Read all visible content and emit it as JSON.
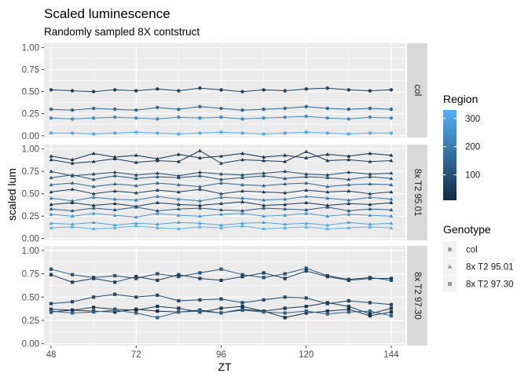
{
  "chart_data": {
    "type": "line",
    "title": "Scaled luminescence",
    "subtitle": "Randomly sampled 8X contstruct",
    "xlabel": "ZT",
    "ylabel": "scaled lum",
    "x_ticks": [
      48,
      72,
      96,
      120,
      144
    ],
    "y_ticks": [
      0.0,
      0.25,
      0.5,
      0.75,
      1.0
    ],
    "y_tick_labels": [
      "0.00",
      "0.25",
      "0.50",
      "0.75",
      "1.00"
    ],
    "x_range": [
      46,
      148
    ],
    "ylim": [
      -0.02,
      1.05
    ],
    "grid": true,
    "legend_position": "right",
    "panels": [
      {
        "label": "col",
        "genotype": "col",
        "series": [
          {
            "region": 60,
            "x": [
              48,
              54,
              60,
              66,
              72,
              78,
              84,
              90,
              96,
              102,
              108,
              114,
              120,
              126,
              132,
              138,
              144
            ],
            "values": [
              0.52,
              0.51,
              0.5,
              0.52,
              0.51,
              0.53,
              0.51,
              0.54,
              0.52,
              0.5,
              0.52,
              0.51,
              0.53,
              0.54,
              0.52,
              0.51,
              0.52
            ]
          },
          {
            "region": 150,
            "x": [
              48,
              54,
              60,
              66,
              72,
              78,
              84,
              90,
              96,
              102,
              108,
              114,
              120,
              126,
              132,
              138,
              144
            ],
            "values": [
              0.3,
              0.29,
              0.31,
              0.3,
              0.29,
              0.32,
              0.3,
              0.33,
              0.31,
              0.29,
              0.3,
              0.31,
              0.33,
              0.31,
              0.3,
              0.31,
              0.3
            ]
          },
          {
            "region": 240,
            "x": [
              48,
              54,
              60,
              66,
              72,
              78,
              84,
              90,
              96,
              102,
              108,
              114,
              120,
              126,
              132,
              138,
              144
            ],
            "values": [
              0.2,
              0.19,
              0.2,
              0.21,
              0.2,
              0.19,
              0.21,
              0.2,
              0.21,
              0.19,
              0.2,
              0.21,
              0.22,
              0.2,
              0.19,
              0.21,
              0.2
            ]
          },
          {
            "region": 320,
            "x": [
              48,
              54,
              60,
              66,
              72,
              78,
              84,
              90,
              96,
              102,
              108,
              114,
              120,
              126,
              132,
              138,
              144
            ],
            "values": [
              0.03,
              0.03,
              0.02,
              0.03,
              0.04,
              0.03,
              0.02,
              0.03,
              0.04,
              0.03,
              0.02,
              0.03,
              0.04,
              0.03,
              0.02,
              0.03,
              0.03
            ]
          }
        ]
      },
      {
        "label": "8x T2 95.01",
        "genotype": "8x T2 95.01",
        "series": [
          {
            "region": 20,
            "x": [
              48,
              54,
              60,
              66,
              72,
              78,
              84,
              90,
              96,
              102,
              108,
              114,
              120,
              126,
              132,
              138,
              144
            ],
            "values": [
              0.92,
              0.88,
              0.95,
              0.91,
              0.93,
              0.89,
              0.94,
              0.9,
              0.92,
              0.95,
              0.91,
              0.93,
              0.9,
              0.94,
              0.92,
              0.95,
              0.93
            ]
          },
          {
            "region": 40,
            "x": [
              48,
              54,
              60,
              66,
              72,
              78,
              84,
              90,
              96,
              102,
              108,
              114,
              120,
              126,
              132,
              138,
              144
            ],
            "values": [
              0.88,
              0.84,
              0.86,
              0.89,
              0.85,
              0.87,
              0.86,
              0.98,
              0.84,
              0.88,
              0.87,
              0.86,
              0.97,
              0.87,
              0.88,
              0.86,
              0.87
            ]
          },
          {
            "region": 80,
            "x": [
              48,
              54,
              60,
              66,
              72,
              78,
              84,
              90,
              96,
              102,
              108,
              114,
              120,
              126,
              132,
              138,
              144
            ],
            "values": [
              0.75,
              0.7,
              0.72,
              0.74,
              0.71,
              0.73,
              0.7,
              0.74,
              0.72,
              0.71,
              0.73,
              0.75,
              0.72,
              0.71,
              0.74,
              0.72,
              0.73
            ]
          },
          {
            "region": 110,
            "x": [
              48,
              54,
              60,
              66,
              72,
              78,
              84,
              90,
              96,
              102,
              108,
              114,
              120,
              126,
              132,
              138,
              144
            ],
            "values": [
              0.68,
              0.71,
              0.66,
              0.7,
              0.67,
              0.69,
              0.68,
              0.7,
              0.66,
              0.68,
              0.7,
              0.67,
              0.69,
              0.68,
              0.66,
              0.69,
              0.67
            ]
          },
          {
            "region": 150,
            "x": [
              48,
              54,
              60,
              66,
              72,
              78,
              84,
              90,
              96,
              102,
              108,
              114,
              120,
              126,
              132,
              138,
              144
            ],
            "values": [
              0.6,
              0.62,
              0.58,
              0.61,
              0.59,
              0.62,
              0.6,
              0.58,
              0.62,
              0.6,
              0.59,
              0.61,
              0.62,
              0.58,
              0.6,
              0.61,
              0.6
            ]
          },
          {
            "region": 60,
            "x": [
              48,
              54,
              60,
              66,
              72,
              78,
              84,
              90,
              96,
              102,
              108,
              114,
              120,
              126,
              132,
              138,
              144
            ],
            "values": [
              0.52,
              0.55,
              0.5,
              0.53,
              0.51,
              0.54,
              0.52,
              0.55,
              0.5,
              0.53,
              0.52,
              0.51,
              0.54,
              0.52,
              0.53,
              0.5,
              0.52
            ]
          },
          {
            "region": 200,
            "x": [
              48,
              54,
              60,
              66,
              72,
              78,
              84,
              90,
              96,
              102,
              108,
              114,
              120,
              126,
              132,
              138,
              144
            ],
            "values": [
              0.45,
              0.42,
              0.46,
              0.44,
              0.43,
              0.47,
              0.44,
              0.42,
              0.46,
              0.45,
              0.43,
              0.44,
              0.47,
              0.45,
              0.43,
              0.46,
              0.44
            ]
          },
          {
            "region": 30,
            "x": [
              48,
              54,
              60,
              66,
              72,
              78,
              84,
              90,
              96,
              102,
              108,
              114,
              120,
              126,
              132,
              138,
              144
            ],
            "values": [
              0.38,
              0.4,
              0.37,
              0.39,
              0.36,
              0.4,
              0.38,
              0.37,
              0.39,
              0.41,
              0.37,
              0.38,
              0.4,
              0.37,
              0.39,
              0.38,
              0.4
            ]
          },
          {
            "region": 120,
            "x": [
              48,
              54,
              60,
              66,
              72,
              78,
              84,
              90,
              96,
              102,
              108,
              114,
              120,
              126,
              132,
              138,
              144
            ],
            "values": [
              0.33,
              0.31,
              0.34,
              0.32,
              0.35,
              0.31,
              0.33,
              0.34,
              0.32,
              0.31,
              0.34,
              0.33,
              0.32,
              0.35,
              0.31,
              0.33,
              0.32
            ]
          },
          {
            "region": 260,
            "x": [
              48,
              54,
              60,
              66,
              72,
              78,
              84,
              90,
              96,
              102,
              108,
              114,
              120,
              126,
              132,
              138,
              144
            ],
            "values": [
              0.27,
              0.25,
              0.28,
              0.26,
              0.24,
              0.28,
              0.26,
              0.25,
              0.27,
              0.28,
              0.25,
              0.26,
              0.28,
              0.25,
              0.27,
              0.26,
              0.25
            ]
          },
          {
            "region": 300,
            "x": [
              48,
              54,
              60,
              66,
              72,
              78,
              84,
              90,
              96,
              102,
              108,
              114,
              120,
              126,
              132,
              138,
              144
            ],
            "values": [
              0.17,
              0.16,
              0.18,
              0.15,
              0.17,
              0.16,
              0.18,
              0.17,
              0.15,
              0.17,
              0.18,
              0.16,
              0.17,
              0.15,
              0.18,
              0.16,
              0.17
            ]
          },
          {
            "region": 330,
            "x": [
              48,
              54,
              60,
              66,
              72,
              78,
              84,
              90,
              96,
              102,
              108,
              114,
              120,
              126,
              132,
              138,
              144
            ],
            "values": [
              0.12,
              0.13,
              0.11,
              0.12,
              0.14,
              0.12,
              0.11,
              0.13,
              0.12,
              0.14,
              0.11,
              0.12,
              0.13,
              0.11,
              0.12,
              0.13,
              0.12
            ]
          }
        ]
      },
      {
        "label": "8x T2 97.30",
        "genotype": "8x T2 97.30",
        "series": [
          {
            "region": 100,
            "x": [
              48,
              54,
              60,
              66,
              72,
              78,
              84,
              90,
              96,
              102,
              108,
              114,
              120,
              126,
              132,
              138,
              144
            ],
            "values": [
              0.8,
              0.74,
              0.71,
              0.73,
              0.7,
              0.75,
              0.72,
              0.76,
              0.8,
              0.74,
              0.71,
              0.75,
              0.81,
              0.73,
              0.69,
              0.71,
              0.68
            ]
          },
          {
            "region": 60,
            "x": [
              48,
              54,
              60,
              66,
              72,
              78,
              84,
              90,
              96,
              102,
              108,
              114,
              120,
              126,
              132,
              138,
              144
            ],
            "values": [
              0.74,
              0.66,
              0.7,
              0.66,
              0.72,
              0.68,
              0.74,
              0.7,
              0.68,
              0.72,
              0.76,
              0.7,
              0.78,
              0.72,
              0.68,
              0.7,
              0.7
            ]
          },
          {
            "region": 80,
            "x": [
              48,
              54,
              60,
              66,
              72,
              78,
              84,
              90,
              96,
              102,
              108,
              114,
              120,
              126,
              132,
              138,
              144
            ],
            "values": [
              0.43,
              0.45,
              0.5,
              0.53,
              0.5,
              0.52,
              0.46,
              0.47,
              0.48,
              0.44,
              0.47,
              0.5,
              0.49,
              0.43,
              0.46,
              0.44,
              0.42
            ]
          },
          {
            "region": 40,
            "x": [
              48,
              54,
              60,
              66,
              72,
              78,
              84,
              90,
              96,
              102,
              108,
              114,
              120,
              126,
              132,
              138,
              144
            ],
            "values": [
              0.37,
              0.36,
              0.39,
              0.37,
              0.36,
              0.4,
              0.38,
              0.34,
              0.38,
              0.4,
              0.35,
              0.38,
              0.4,
              0.44,
              0.4,
              0.32,
              0.38
            ]
          },
          {
            "region": 20,
            "x": [
              48,
              54,
              60,
              66,
              72,
              78,
              84,
              90,
              96,
              102,
              108,
              114,
              120,
              126,
              132,
              138,
              144
            ],
            "values": [
              0.34,
              0.36,
              0.35,
              0.34,
              0.37,
              0.35,
              0.34,
              0.36,
              0.33,
              0.37,
              0.35,
              0.28,
              0.33,
              0.35,
              0.37,
              0.3,
              0.34
            ]
          },
          {
            "region": 140,
            "x": [
              48,
              54,
              60,
              66,
              72,
              78,
              84,
              90,
              96,
              102,
              108,
              114,
              120,
              126,
              132,
              138,
              144
            ],
            "values": [
              0.35,
              0.33,
              0.34,
              0.36,
              0.33,
              0.28,
              0.34,
              0.35,
              0.33,
              0.36,
              0.34,
              0.33,
              0.35,
              0.32,
              0.34,
              0.35,
              0.3
            ]
          }
        ]
      }
    ],
    "legend": {
      "region_title": "Region",
      "region_ticks": [
        100,
        200,
        300
      ],
      "region_range": [
        10,
        330
      ],
      "region_colors": [
        "#132B43",
        "#56B1F7"
      ],
      "genotype_title": "Genotype",
      "genotype_items": [
        {
          "label": "col",
          "shape": "circle"
        },
        {
          "label": "8x T2 95.01",
          "shape": "triangle"
        },
        {
          "label": "8x T2 97.30",
          "shape": "square"
        }
      ]
    },
    "colors": {
      "panel_bg": "#EBEBEB",
      "grid": "#FFFFFF",
      "strip_bg": "#D9D9D9",
      "legend_key_bg": "#F2F2F2",
      "legend_shape": "#999999"
    }
  }
}
